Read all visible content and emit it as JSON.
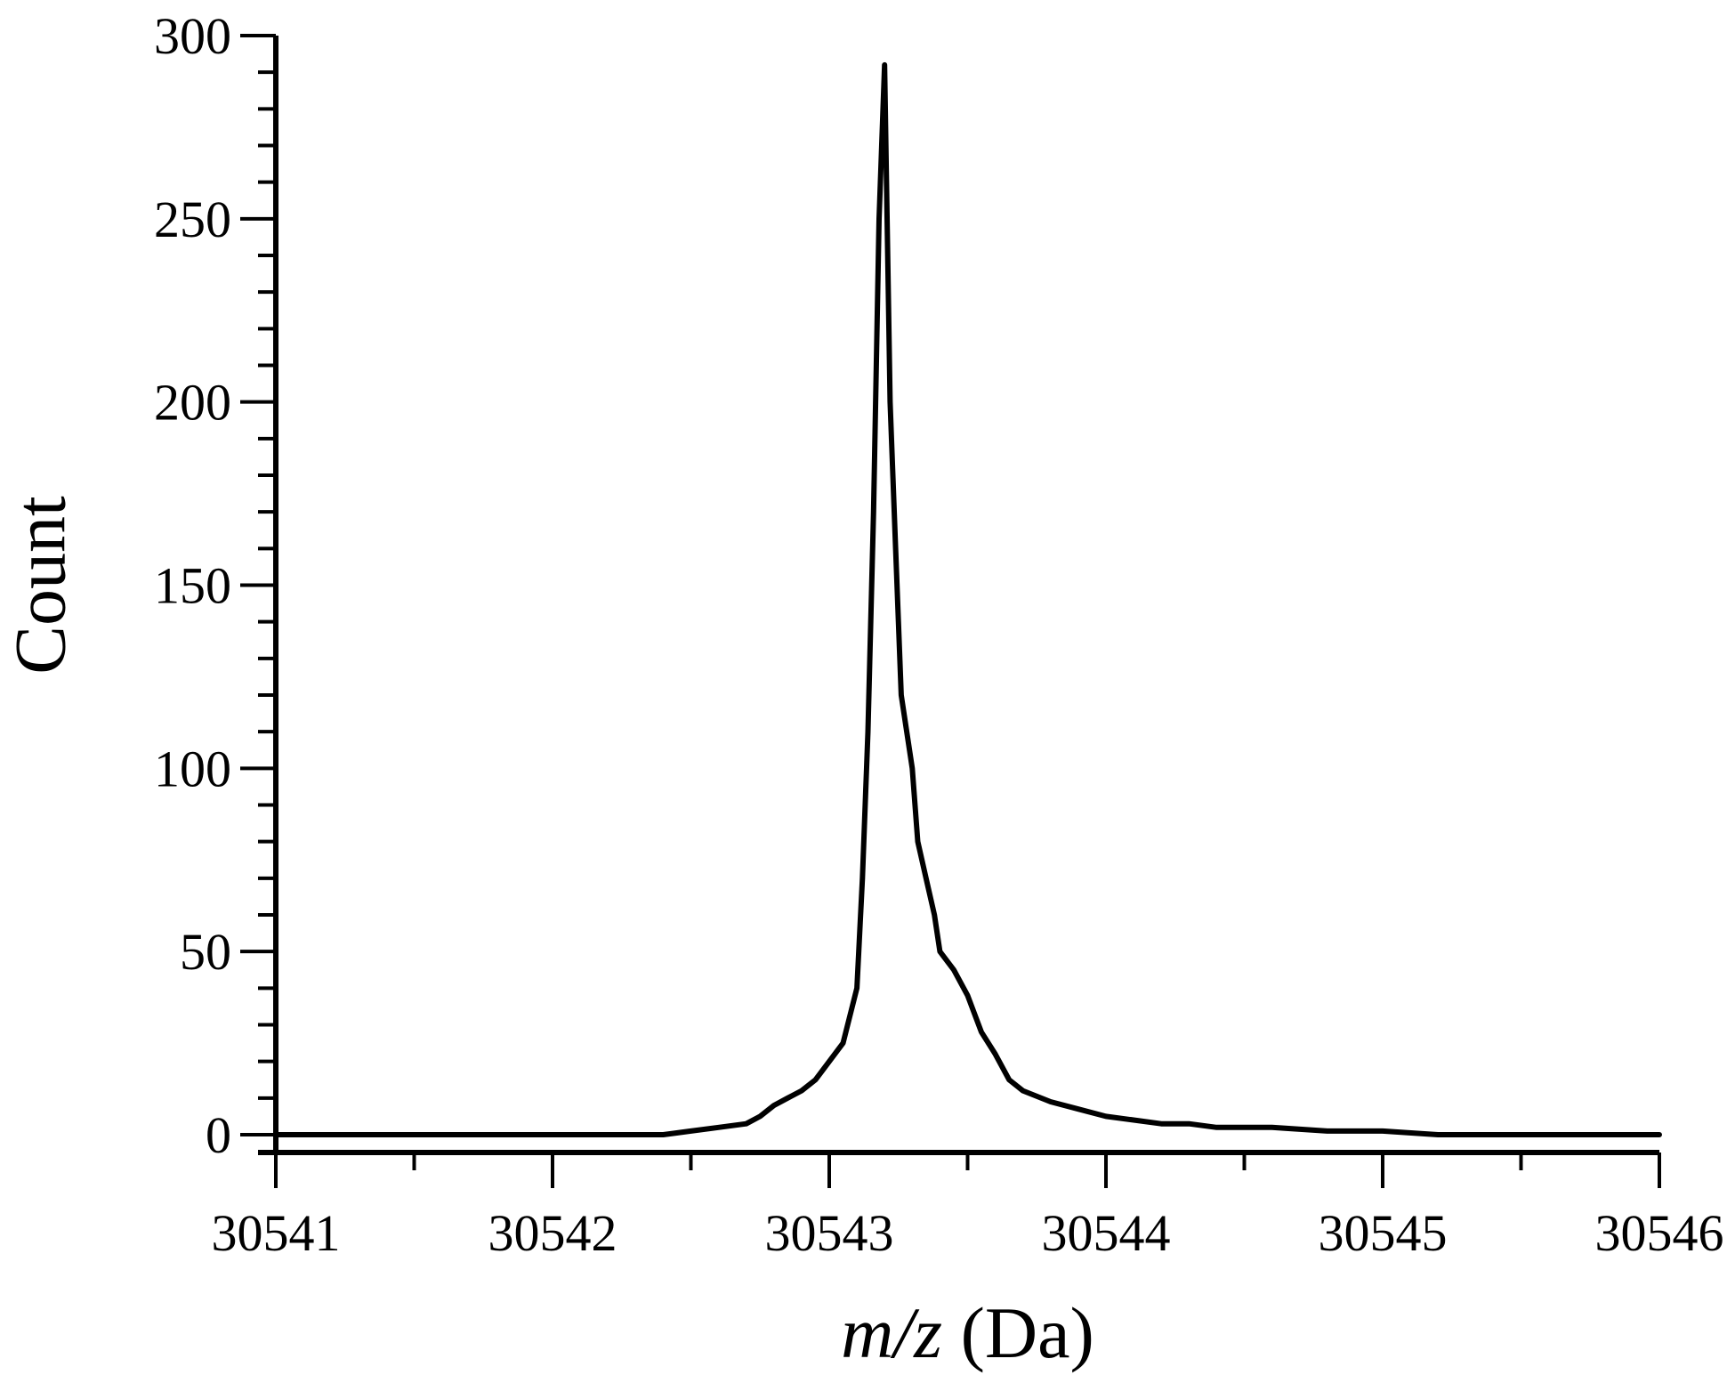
{
  "chart_data": {
    "type": "line",
    "title": "",
    "xlabel_italic": "m/z",
    "xlabel_unit": " (Da)",
    "ylabel": "Count",
    "xlim": [
      30541,
      30546
    ],
    "ylim": [
      0,
      300
    ],
    "x_ticks": [
      30541,
      30542,
      30543,
      30544,
      30545,
      30546
    ],
    "x_tick_labels": [
      "30541",
      "30542",
      "30543",
      "30544",
      "30545",
      "30546"
    ],
    "y_ticks": [
      0,
      50,
      100,
      150,
      200,
      250,
      300
    ],
    "y_tick_labels": [
      "0",
      "50",
      "100",
      "150",
      "200",
      "250",
      "300"
    ],
    "grid": false,
    "legend": "none",
    "line_color": "#000000",
    "series": [
      {
        "x": [
          30541.0,
          30541.2,
          30541.4,
          30541.6,
          30541.8,
          30542.0,
          30542.2,
          30542.4,
          30542.5,
          30542.6,
          30542.7,
          30542.75,
          30542.8,
          30542.85,
          30542.9,
          30542.95,
          30543.0,
          30543.05,
          30543.1,
          30543.12,
          30543.14,
          30543.16,
          30543.18,
          30543.2,
          30543.22,
          30543.24,
          30543.26,
          30543.28,
          30543.3,
          30543.32,
          30543.35,
          30543.38,
          30543.4,
          30543.45,
          30543.5,
          30543.55,
          30543.6,
          30543.65,
          30543.7,
          30543.8,
          30543.9,
          30544.0,
          30544.1,
          30544.2,
          30544.3,
          30544.4,
          30544.5,
          30544.6,
          30544.8,
          30545.0,
          30545.2,
          30545.5,
          30545.8,
          30546.0
        ],
        "y": [
          0,
          0,
          0,
          0,
          0,
          0,
          0,
          0,
          1,
          2,
          3,
          5,
          8,
          10,
          12,
          15,
          20,
          25,
          40,
          70,
          110,
          170,
          250,
          292,
          200,
          160,
          120,
          110,
          100,
          80,
          70,
          60,
          50,
          45,
          38,
          28,
          22,
          15,
          12,
          9,
          7,
          5,
          4,
          3,
          3,
          2,
          2,
          2,
          1,
          1,
          0,
          0,
          0,
          0
        ]
      }
    ]
  }
}
